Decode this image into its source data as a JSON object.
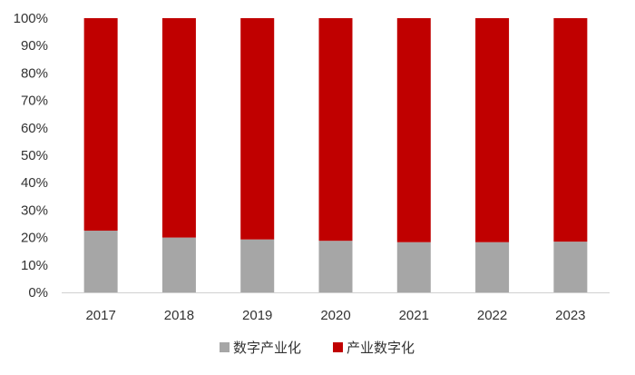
{
  "chart_data": {
    "type": "bar",
    "stacked": true,
    "categories": [
      "2017",
      "2018",
      "2019",
      "2020",
      "2021",
      "2022",
      "2023"
    ],
    "series": [
      {
        "name": "数字产业化",
        "color": "#a6a6a6",
        "values": [
          22.5,
          20.0,
          19.3,
          18.8,
          18.3,
          18.3,
          18.5
        ]
      },
      {
        "name": "产业数字化",
        "color": "#c00000",
        "values": [
          77.5,
          80.0,
          80.7,
          81.2,
          81.7,
          81.7,
          81.5
        ]
      }
    ],
    "ylim": [
      0,
      100
    ],
    "yticks": [
      "0%",
      "10%",
      "20%",
      "30%",
      "40%",
      "50%",
      "60%",
      "70%",
      "80%",
      "90%",
      "100%"
    ],
    "legend_position": "bottom",
    "grid": false
  }
}
